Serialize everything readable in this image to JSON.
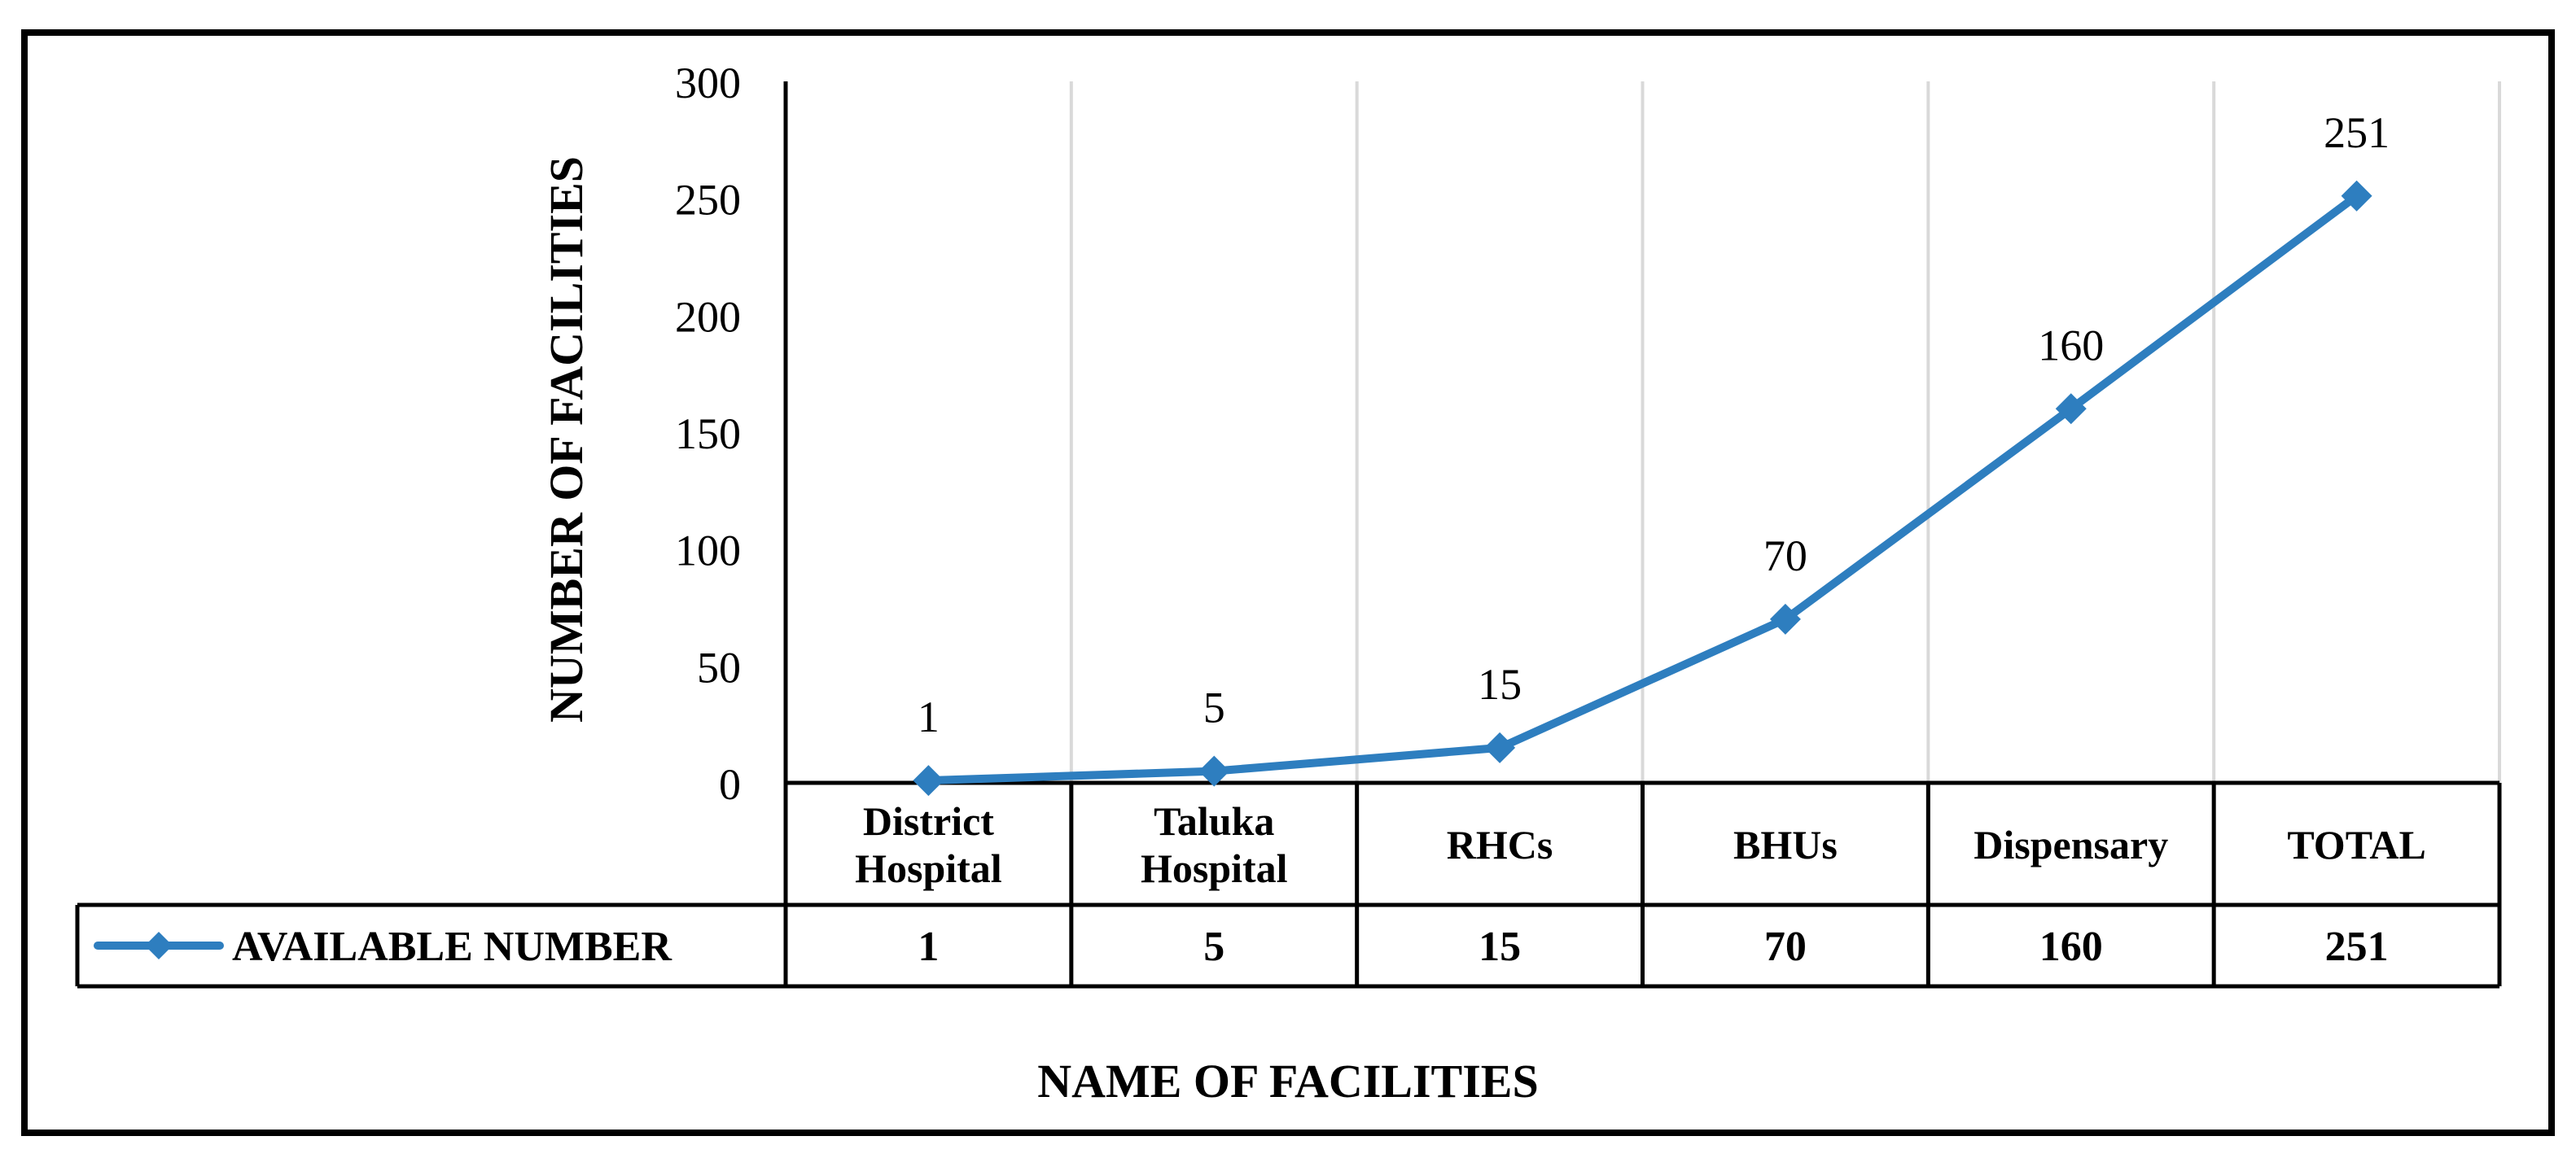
{
  "chart_data": {
    "type": "line",
    "categories": [
      "District\nHospital",
      "Taluka\nHospital",
      "RHCs",
      "BHUs",
      "Dispensary",
      "TOTAL"
    ],
    "series": [
      {
        "name": "AVAILABLE NUMBER",
        "values": [
          1,
          5,
          15,
          70,
          160,
          251
        ]
      }
    ],
    "data_labels": [
      "1",
      "5",
      "15",
      "70",
      "160",
      "251"
    ],
    "table_values": [
      "1",
      "5",
      "15",
      "70",
      "160",
      "251"
    ],
    "xlabel": "NAME OF FACILITIES",
    "ylabel": "NUMBER OF FACILITIES",
    "ylim": [
      0,
      300
    ],
    "yticks": [
      0,
      50,
      100,
      150,
      200,
      250,
      300
    ],
    "grid": "vertical",
    "legend": "data table",
    "colors": {
      "series": "#2e7ebf",
      "grid": "#d9d9d9",
      "border": "#000000"
    }
  }
}
